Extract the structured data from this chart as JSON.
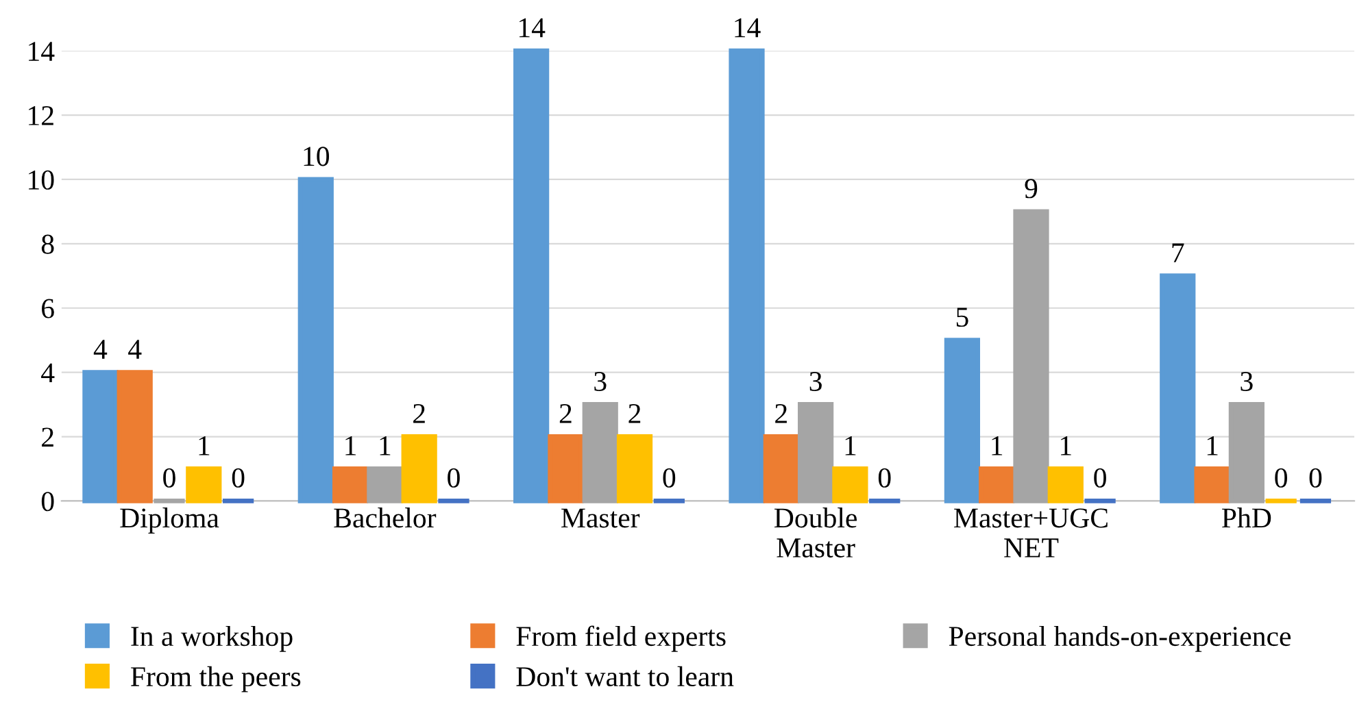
{
  "chart_data": {
    "type": "bar",
    "categories": [
      "Diploma",
      "Bachelor",
      "Master",
      "Double\nMaster",
      "Master+UGC\nNET",
      "PhD"
    ],
    "series": [
      {
        "name": "In a workshop",
        "color": "#5b9bd5",
        "values": [
          4,
          10,
          14,
          14,
          5,
          7
        ]
      },
      {
        "name": "From field experts",
        "color": "#ed7d31",
        "values": [
          4,
          1,
          2,
          2,
          1,
          1
        ]
      },
      {
        "name": "Personal hands-on-experience",
        "color": "#a5a5a5",
        "values": [
          0,
          1,
          3,
          3,
          9,
          3
        ]
      },
      {
        "name": "From the peers",
        "color": "#ffc000",
        "values": [
          1,
          2,
          2,
          1,
          1,
          0
        ]
      },
      {
        "name": "Don't want to learn",
        "color": "#4472c4",
        "values": [
          0,
          0,
          0,
          0,
          0,
          0
        ]
      }
    ],
    "ylim": [
      0,
      14
    ],
    "yticks": [
      0,
      2,
      4,
      6,
      8,
      10,
      12,
      14
    ],
    "grid": "y",
    "legend": "bottom",
    "data_labels": true
  }
}
